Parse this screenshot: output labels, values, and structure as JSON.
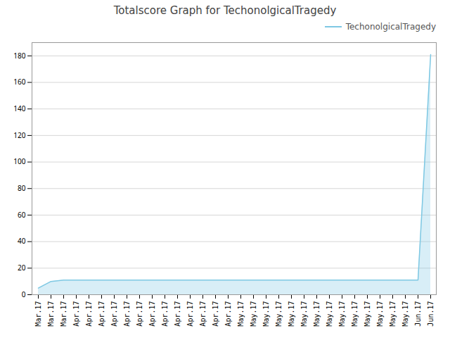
{
  "chart_data": {
    "type": "area",
    "title": "Totalscore Graph for TechonolgicalTragedy",
    "categories": [
      "Mar.17",
      "Mar.17",
      "Mar.17",
      "Apr.17",
      "Apr.17",
      "Apr.17",
      "Apr.17",
      "Apr.17",
      "Apr.17",
      "Apr.17",
      "Apr.17",
      "Apr.17",
      "Apr.17",
      "Apr.17",
      "Apr.17",
      "Apr.17",
      "May.17",
      "May.17",
      "May.17",
      "May.17",
      "May.17",
      "May.17",
      "May.17",
      "May.17",
      "May.17",
      "May.17",
      "May.17",
      "May.17",
      "May.17",
      "May.17",
      "Jun.17",
      "Jun.17"
    ],
    "series": [
      {
        "name": "TechonolgicalTragedy",
        "color": "#7ec8e3",
        "values": [
          5,
          10,
          11,
          11,
          11,
          11,
          11,
          11,
          11,
          11,
          11,
          11,
          11,
          11,
          11,
          11,
          11,
          11,
          11,
          11,
          11,
          11,
          11,
          11,
          11,
          11,
          11,
          11,
          11,
          11,
          11,
          181
        ]
      }
    ],
    "ylim": [
      0,
      190
    ],
    "yticks": [
      0,
      20,
      40,
      60,
      80,
      100,
      120,
      140,
      160,
      180
    ],
    "grid": true,
    "legend": "upper right"
  }
}
